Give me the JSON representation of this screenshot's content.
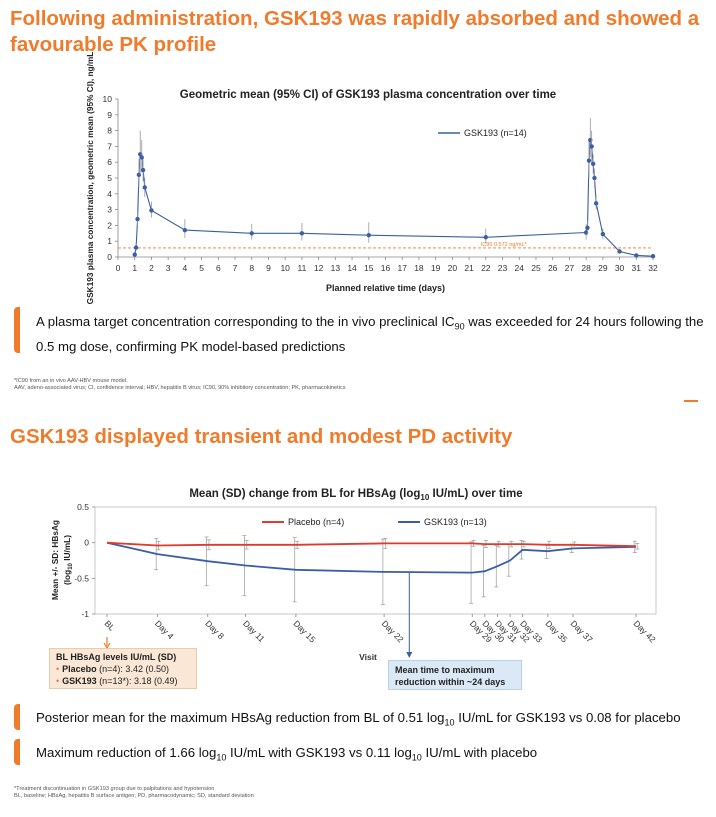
{
  "slide1": {
    "title": "Following administration, GSK193 was rapidly absorbed and showed a favourable PK profile",
    "callout": {
      "part1": "A plasma target concentration corresponding to the in vivo preclinical IC",
      "sub": "90",
      "part2": " was exceeded for 24 hours following the 0.5 mg dose, confirming PK model-based predictions"
    },
    "footnote_a": "*IC90 from an in vivo AAV-HBV mouse model.",
    "footnote_b": "AAV, adeno-associated virus; CI, confidence interval; HBV, hepatitis B virus; IC90, 90% inhibitory concentration; PK, pharmacokinetics"
  },
  "slide2": {
    "title": "GSK193 displayed transient and modest PD activity",
    "callout1": {
      "part1": "Posterior mean for the maximum HBsAg reduction from BL of 0.51 log",
      "sub": "10",
      "part2": " IU/mL for GSK193 vs 0.08 for placebo"
    },
    "callout2": {
      "part1": "Maximum reduction of 1.66 log",
      "sub1": "10",
      "part2": " IU/mL with GSK193 vs 0.11 log",
      "sub2": "10",
      "part3": " IU/mL with placebo"
    },
    "bl_box": {
      "heading": "BL HBsAg levels IU/mL (SD)",
      "row1_label": "Placebo",
      "row1_value": " (n=4): 3.42 (0.50)",
      "row2_label": "GSK193",
      "row2_value": " (n=13*): 3.18 (0.49)"
    },
    "annotation": "Mean time to maximum reduction within ~24 days",
    "footnote_a": "*Treatment discontinuation in GSK193 group due to palpitations and hypotension",
    "footnote_b": "BL, baseline; HBsAg, hepatitis B surface antigen; PD, pharmacodynamic; SD, standard deviation"
  },
  "colors": {
    "accent": "#f07b2b",
    "gsk_line": "#3a5ea8",
    "placebo_line": "#e03a2f",
    "ic90_line": "#f07b2b"
  },
  "chart_data": [
    {
      "type": "line",
      "title": "Geometric mean (95% CI) of GSK193 plasma concentration over time",
      "xlabel": "Planned relative time (days)",
      "ylabel": "GSK193 plasma concentration, geometric mean (95% CI), ng/mL",
      "xlim": [
        0,
        32
      ],
      "ylim": [
        0,
        10
      ],
      "xticks": [
        "0",
        "1",
        "2",
        "3",
        "4",
        "5",
        "6",
        "7",
        "8",
        "9",
        "10",
        "11",
        "12",
        "13",
        "14",
        "15",
        "16",
        "17",
        "18",
        "19",
        "20",
        "21",
        "22",
        "23",
        "24",
        "25",
        "26",
        "27",
        "28",
        "29",
        "30",
        "31",
        "32"
      ],
      "yticks": [
        "0",
        "1",
        "2",
        "3",
        "4",
        "5",
        "6",
        "7",
        "8",
        "9",
        "10"
      ],
      "legend_position": "top-right",
      "series": [
        {
          "name": "GSK193 (n=14)",
          "x": [
            1.0,
            1.08,
            1.17,
            1.25,
            1.33,
            1.42,
            1.5,
            1.6,
            2.0,
            4.0,
            8.0,
            11.0,
            15.0,
            22.0,
            28.0,
            28.08,
            28.17,
            28.25,
            28.33,
            28.42,
            28.5,
            28.6,
            29.0,
            30.0,
            31.0,
            32.0
          ],
          "y": [
            0.15,
            0.6,
            2.4,
            5.2,
            6.5,
            6.3,
            5.5,
            4.4,
            2.95,
            1.7,
            1.5,
            1.5,
            1.38,
            1.25,
            1.55,
            1.85,
            6.1,
            7.4,
            7.0,
            5.9,
            5.0,
            3.4,
            1.45,
            0.35,
            0.1,
            0.05
          ],
          "err_upper": [
            0.2,
            0.9,
            2.9,
            6.2,
            8.0,
            7.4,
            6.2,
            5.0,
            3.5,
            2.4,
            2.1,
            2.15,
            2.2,
            1.8,
            2.1,
            2.3,
            7.5,
            8.8,
            8.0,
            6.5,
            5.6,
            3.9,
            1.8,
            0.5,
            0.15,
            0.08
          ],
          "err_lower": [
            0.1,
            0.4,
            2.0,
            4.4,
            5.2,
            5.4,
            4.8,
            3.8,
            2.5,
            1.2,
            1.1,
            1.05,
            0.9,
            0.85,
            1.1,
            1.4,
            5.0,
            6.3,
            6.0,
            5.3,
            4.4,
            3.0,
            1.15,
            0.25,
            0.06,
            0.03
          ]
        }
      ],
      "reference_line": {
        "y": 0.572,
        "label": "IC90 0.572 ng/mL*"
      }
    },
    {
      "type": "line",
      "title_part1": "Mean (SD) change from BL for HBsAg (log",
      "title_sub": "10",
      "title_part2": " IU/mL) over time",
      "xlabel": "Visit",
      "ylabel_part1": "Mean +/- SD: HBsAg",
      "ylabel_part2_a": "(log",
      "ylabel_part2_sub": "10",
      "ylabel_part2_b": " IU/mL)",
      "ylim": [
        -1,
        0.5
      ],
      "yticks": [
        "0.5",
        "0",
        "-0.5",
        "-1"
      ],
      "legend_position": "top",
      "categories": [
        "BL",
        "Day 4",
        "Day 8",
        "Day 11",
        "Day 15",
        "Day 22",
        "Day 29",
        "Day 30",
        "Day 31",
        "Day 32",
        "Day 33",
        "Day 35",
        "Day 37",
        "Day 42"
      ],
      "day": [
        0,
        4,
        8,
        11,
        15,
        22,
        29,
        30,
        31,
        32,
        33,
        35,
        37,
        42
      ],
      "series": [
        {
          "name": "Placebo (n=4)",
          "values": [
            0,
            -0.04,
            -0.03,
            -0.03,
            -0.03,
            -0.01,
            -0.01,
            -0.02,
            -0.02,
            -0.02,
            -0.02,
            -0.03,
            -0.03,
            -0.05
          ],
          "sd": [
            0,
            0.06,
            0.07,
            0.06,
            0.05,
            0.07,
            0.04,
            0.05,
            0.04,
            0.04,
            0.04,
            0.05,
            0.04,
            0.04
          ]
        },
        {
          "name": "GSK193 (n=13)",
          "values": [
            0,
            -0.16,
            -0.26,
            -0.32,
            -0.38,
            -0.41,
            -0.42,
            -0.4,
            -0.33,
            -0.25,
            -0.1,
            -0.12,
            -0.08,
            -0.06
          ],
          "sd": [
            0,
            0.22,
            0.34,
            0.42,
            0.45,
            0.46,
            0.43,
            0.36,
            0.29,
            0.22,
            0.13,
            0.1,
            0.06,
            0.08
          ]
        }
      ]
    }
  ]
}
